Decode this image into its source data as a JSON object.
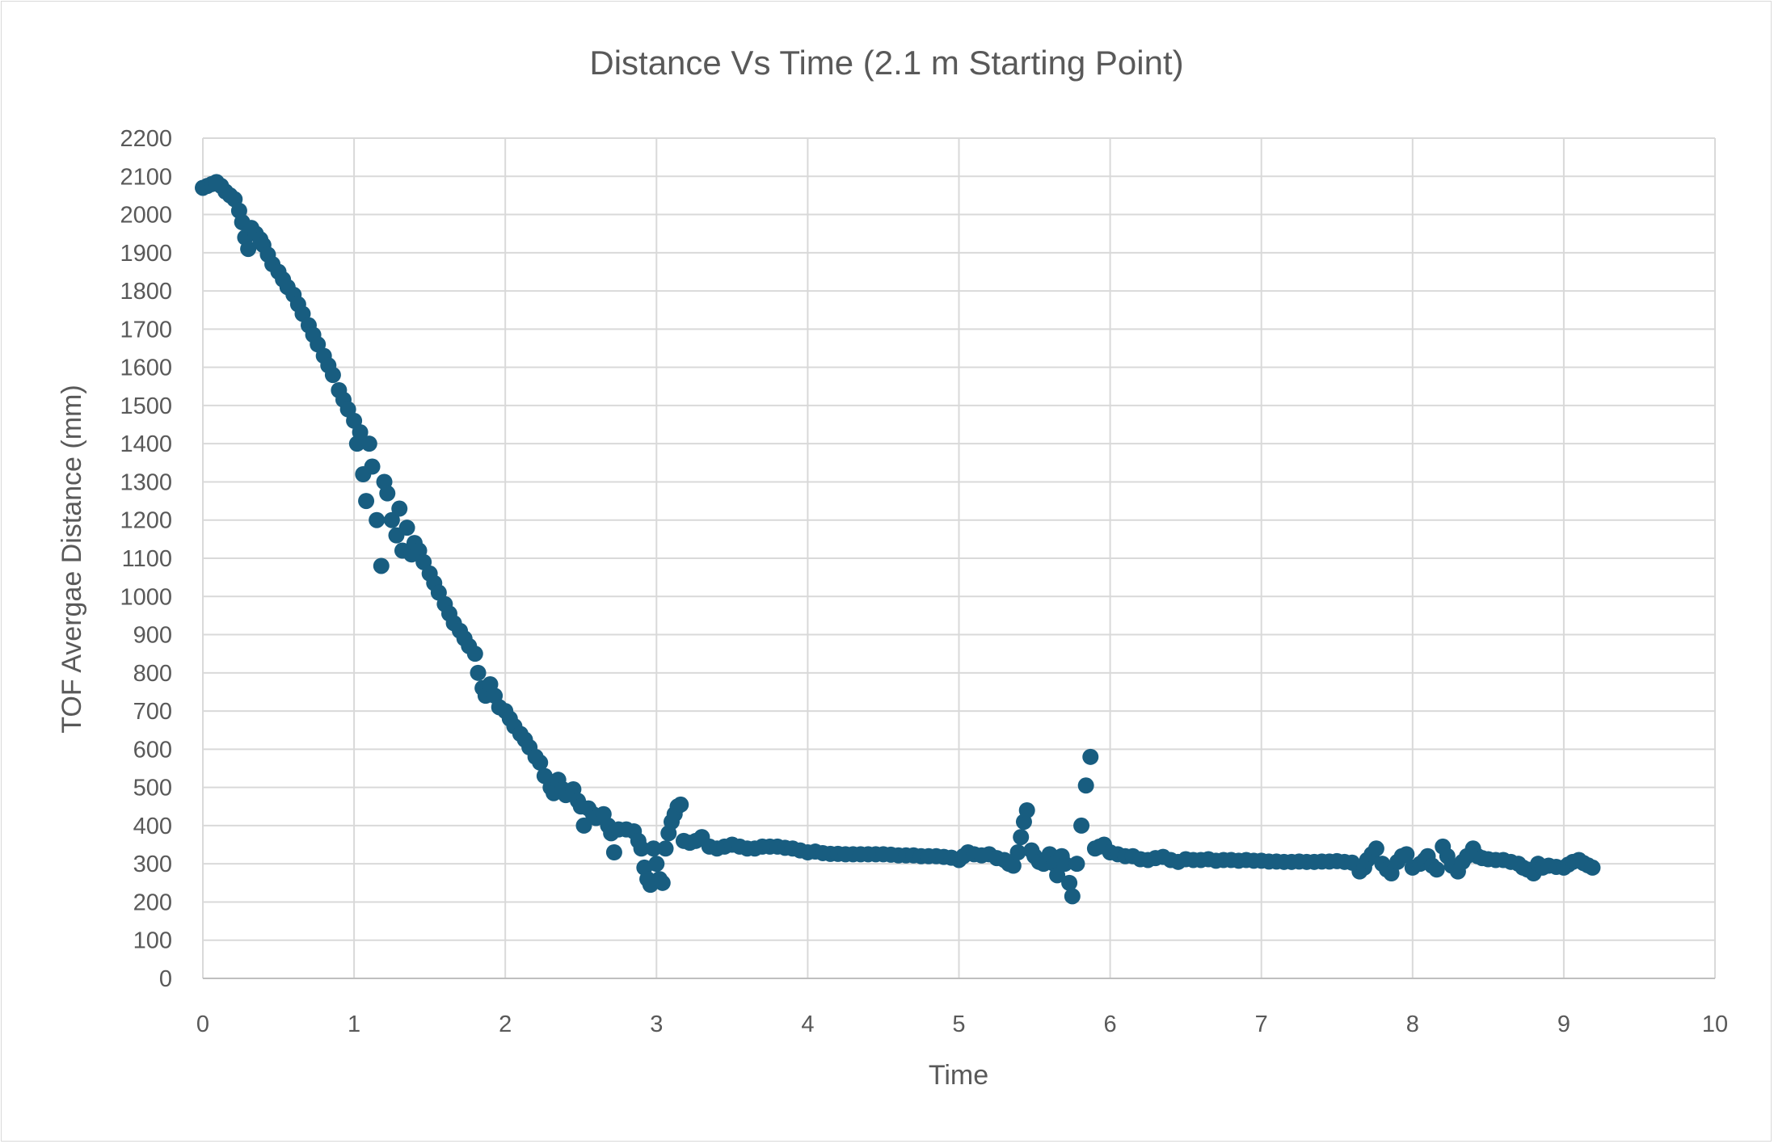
{
  "chart_data": {
    "type": "scatter",
    "title": "Distance Vs Time (2.1 m Starting Point)",
    "xlabel": "Time",
    "ylabel": "TOF Avergae Distance (mm)",
    "xlim": [
      0,
      10
    ],
    "ylim": [
      0,
      2200
    ],
    "xticks": [
      0,
      1,
      2,
      3,
      4,
      5,
      6,
      7,
      8,
      9,
      10
    ],
    "yticks": [
      0,
      100,
      200,
      300,
      400,
      500,
      600,
      700,
      800,
      900,
      1000,
      1100,
      1200,
      1300,
      1400,
      1500,
      1600,
      1700,
      1800,
      1900,
      2000,
      2100,
      2200
    ],
    "grid": true,
    "legend": "none",
    "marker_color": "#185d80",
    "series": [
      {
        "name": "TOF Avergae Distance",
        "points": [
          [
            0,
            2070
          ],
          [
            0.03,
            2075
          ],
          [
            0.06,
            2080
          ],
          [
            0.09,
            2085
          ],
          [
            0.12,
            2075
          ],
          [
            0.15,
            2060
          ],
          [
            0.18,
            2050
          ],
          [
            0.21,
            2040
          ],
          [
            0.24,
            2010
          ],
          [
            0.26,
            1980
          ],
          [
            0.28,
            1940
          ],
          [
            0.3,
            1910
          ],
          [
            0.32,
            1965
          ],
          [
            0.35,
            1950
          ],
          [
            0.38,
            1935
          ],
          [
            0.4,
            1920
          ],
          [
            0.43,
            1895
          ],
          [
            0.46,
            1870
          ],
          [
            0.5,
            1850
          ],
          [
            0.53,
            1830
          ],
          [
            0.56,
            1810
          ],
          [
            0.6,
            1790
          ],
          [
            0.63,
            1765
          ],
          [
            0.66,
            1740
          ],
          [
            0.7,
            1710
          ],
          [
            0.73,
            1685
          ],
          [
            0.76,
            1660
          ],
          [
            0.8,
            1630
          ],
          [
            0.83,
            1605
          ],
          [
            0.86,
            1580
          ],
          [
            0.9,
            1540
          ],
          [
            0.93,
            1515
          ],
          [
            0.96,
            1490
          ],
          [
            1.0,
            1460
          ],
          [
            1.02,
            1400
          ],
          [
            1.04,
            1430
          ],
          [
            1.06,
            1320
          ],
          [
            1.08,
            1250
          ],
          [
            1.1,
            1400
          ],
          [
            1.12,
            1340
          ],
          [
            1.15,
            1200
          ],
          [
            1.18,
            1080
          ],
          [
            1.2,
            1300
          ],
          [
            1.22,
            1270
          ],
          [
            1.25,
            1200
          ],
          [
            1.28,
            1160
          ],
          [
            1.3,
            1230
          ],
          [
            1.32,
            1120
          ],
          [
            1.35,
            1180
          ],
          [
            1.38,
            1110
          ],
          [
            1.4,
            1140
          ],
          [
            1.43,
            1120
          ],
          [
            1.46,
            1090
          ],
          [
            1.5,
            1060
          ],
          [
            1.53,
            1035
          ],
          [
            1.56,
            1010
          ],
          [
            1.6,
            980
          ],
          [
            1.63,
            955
          ],
          [
            1.66,
            930
          ],
          [
            1.7,
            910
          ],
          [
            1.73,
            890
          ],
          [
            1.76,
            870
          ],
          [
            1.8,
            850
          ],
          [
            1.82,
            800
          ],
          [
            1.85,
            760
          ],
          [
            1.87,
            740
          ],
          [
            1.9,
            770
          ],
          [
            1.93,
            740
          ],
          [
            1.96,
            710
          ],
          [
            2.0,
            700
          ],
          [
            2.03,
            680
          ],
          [
            2.06,
            660
          ],
          [
            2.1,
            640
          ],
          [
            2.13,
            625
          ],
          [
            2.16,
            605
          ],
          [
            2.2,
            580
          ],
          [
            2.23,
            565
          ],
          [
            2.26,
            530
          ],
          [
            2.3,
            500
          ],
          [
            2.32,
            485
          ],
          [
            2.35,
            520
          ],
          [
            2.38,
            495
          ],
          [
            2.4,
            480
          ],
          [
            2.45,
            495
          ],
          [
            2.48,
            465
          ],
          [
            2.5,
            450
          ],
          [
            2.52,
            400
          ],
          [
            2.55,
            445
          ],
          [
            2.58,
            430
          ],
          [
            2.6,
            420
          ],
          [
            2.65,
            430
          ],
          [
            2.68,
            400
          ],
          [
            2.7,
            380
          ],
          [
            2.72,
            330
          ],
          [
            2.75,
            390
          ],
          [
            2.8,
            390
          ],
          [
            2.85,
            385
          ],
          [
            2.88,
            360
          ],
          [
            2.9,
            340
          ],
          [
            2.92,
            290
          ],
          [
            2.94,
            260
          ],
          [
            2.96,
            245
          ],
          [
            2.98,
            340
          ],
          [
            3.0,
            300
          ],
          [
            3.02,
            260
          ],
          [
            3.04,
            250
          ],
          [
            3.06,
            340
          ],
          [
            3.08,
            380
          ],
          [
            3.1,
            410
          ],
          [
            3.12,
            430
          ],
          [
            3.14,
            450
          ],
          [
            3.16,
            455
          ],
          [
            3.18,
            360
          ],
          [
            3.22,
            355
          ],
          [
            3.26,
            360
          ],
          [
            3.3,
            370
          ],
          [
            3.35,
            345
          ],
          [
            3.4,
            340
          ],
          [
            3.45,
            345
          ],
          [
            3.5,
            350
          ],
          [
            3.55,
            345
          ],
          [
            3.6,
            340
          ],
          [
            3.65,
            340
          ],
          [
            3.7,
            345
          ],
          [
            3.75,
            345
          ],
          [
            3.8,
            345
          ],
          [
            3.85,
            342
          ],
          [
            3.9,
            340
          ],
          [
            3.95,
            335
          ],
          [
            4.0,
            330
          ],
          [
            4.05,
            332
          ],
          [
            4.1,
            328
          ],
          [
            4.15,
            326
          ],
          [
            4.2,
            326
          ],
          [
            4.25,
            325
          ],
          [
            4.3,
            325
          ],
          [
            4.35,
            325
          ],
          [
            4.4,
            325
          ],
          [
            4.45,
            325
          ],
          [
            4.5,
            325
          ],
          [
            4.55,
            324
          ],
          [
            4.6,
            322
          ],
          [
            4.65,
            322
          ],
          [
            4.7,
            322
          ],
          [
            4.75,
            320
          ],
          [
            4.8,
            320
          ],
          [
            4.85,
            320
          ],
          [
            4.9,
            318
          ],
          [
            4.95,
            316
          ],
          [
            5.0,
            310
          ],
          [
            5.03,
            320
          ],
          [
            5.06,
            330
          ],
          [
            5.1,
            325
          ],
          [
            5.15,
            322
          ],
          [
            5.2,
            325
          ],
          [
            5.25,
            315
          ],
          [
            5.3,
            310
          ],
          [
            5.33,
            300
          ],
          [
            5.36,
            295
          ],
          [
            5.39,
            330
          ],
          [
            5.41,
            370
          ],
          [
            5.43,
            410
          ],
          [
            5.45,
            440
          ],
          [
            5.48,
            335
          ],
          [
            5.5,
            320
          ],
          [
            5.53,
            305
          ],
          [
            5.56,
            300
          ],
          [
            5.6,
            325
          ],
          [
            5.63,
            300
          ],
          [
            5.65,
            270
          ],
          [
            5.68,
            320
          ],
          [
            5.7,
            300
          ],
          [
            5.73,
            250
          ],
          [
            5.75,
            215
          ],
          [
            5.78,
            300
          ],
          [
            5.81,
            400
          ],
          [
            5.84,
            505
          ],
          [
            5.87,
            580
          ],
          [
            5.9,
            340
          ],
          [
            5.93,
            345
          ],
          [
            5.96,
            350
          ],
          [
            6.0,
            330
          ],
          [
            6.05,
            325
          ],
          [
            6.1,
            320
          ],
          [
            6.15,
            320
          ],
          [
            6.2,
            312
          ],
          [
            6.25,
            310
          ],
          [
            6.3,
            315
          ],
          [
            6.35,
            318
          ],
          [
            6.4,
            310
          ],
          [
            6.45,
            305
          ],
          [
            6.5,
            312
          ],
          [
            6.55,
            310
          ],
          [
            6.6,
            310
          ],
          [
            6.65,
            312
          ],
          [
            6.7,
            308
          ],
          [
            6.75,
            310
          ],
          [
            6.8,
            310
          ],
          [
            6.85,
            308
          ],
          [
            6.9,
            310
          ],
          [
            6.95,
            308
          ],
          [
            7.0,
            308
          ],
          [
            7.05,
            306
          ],
          [
            7.1,
            306
          ],
          [
            7.15,
            305
          ],
          [
            7.2,
            305
          ],
          [
            7.25,
            306
          ],
          [
            7.3,
            305
          ],
          [
            7.35,
            305
          ],
          [
            7.4,
            306
          ],
          [
            7.45,
            306
          ],
          [
            7.5,
            307
          ],
          [
            7.55,
            305
          ],
          [
            7.6,
            303
          ],
          [
            7.65,
            280
          ],
          [
            7.68,
            290
          ],
          [
            7.7,
            310
          ],
          [
            7.73,
            325
          ],
          [
            7.76,
            340
          ],
          [
            7.8,
            300
          ],
          [
            7.83,
            285
          ],
          [
            7.86,
            275
          ],
          [
            7.9,
            305
          ],
          [
            7.93,
            320
          ],
          [
            7.96,
            325
          ],
          [
            8.0,
            290
          ],
          [
            8.05,
            300
          ],
          [
            8.08,
            310
          ],
          [
            8.1,
            320
          ],
          [
            8.13,
            295
          ],
          [
            8.16,
            285
          ],
          [
            8.2,
            345
          ],
          [
            8.23,
            320
          ],
          [
            8.26,
            295
          ],
          [
            8.3,
            280
          ],
          [
            8.33,
            305
          ],
          [
            8.36,
            320
          ],
          [
            8.4,
            340
          ],
          [
            8.43,
            320
          ],
          [
            8.46,
            315
          ],
          [
            8.5,
            312
          ],
          [
            8.55,
            310
          ],
          [
            8.6,
            310
          ],
          [
            8.65,
            305
          ],
          [
            8.7,
            300
          ],
          [
            8.73,
            290
          ],
          [
            8.76,
            285
          ],
          [
            8.8,
            275
          ],
          [
            8.83,
            300
          ],
          [
            8.86,
            290
          ],
          [
            8.9,
            295
          ],
          [
            8.95,
            292
          ],
          [
            9.0,
            290
          ],
          [
            9.03,
            298
          ],
          [
            9.06,
            305
          ],
          [
            9.1,
            310
          ],
          [
            9.13,
            302
          ],
          [
            9.16,
            296
          ],
          [
            9.19,
            290
          ]
        ]
      }
    ]
  }
}
